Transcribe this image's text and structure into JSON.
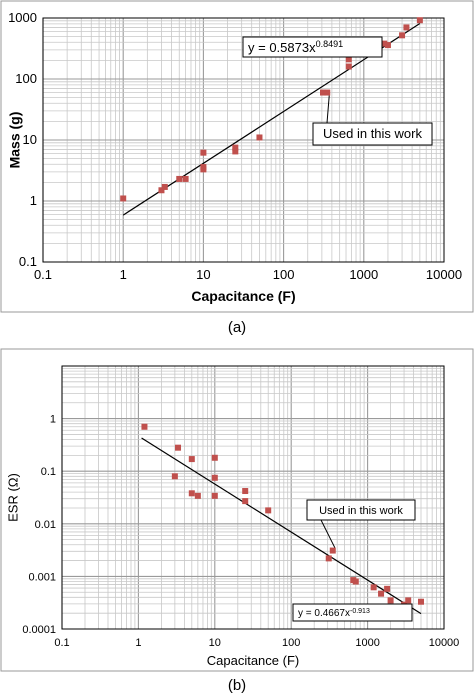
{
  "chart_data": [
    {
      "type": "scatter",
      "panel_label": "(a)",
      "xlabel": "Capacitance (F)",
      "ylabel": "Mass (g)",
      "xscale": "log",
      "yscale": "log",
      "xlim": [
        0.1,
        10000
      ],
      "ylim": [
        0.1,
        1000
      ],
      "x_ticks": [
        "0.1",
        "1",
        "10",
        "100",
        "1000",
        "10000"
      ],
      "y_ticks": [
        "0.1",
        "1",
        "10",
        "100",
        "1000"
      ],
      "grid": true,
      "marker_color": "#c0504d",
      "trendline": {
        "coef": 0.5873,
        "exponent": 0.8491,
        "x_range": [
          1,
          5000
        ],
        "equation_text": "y = 0.5873x",
        "equation_exponent": "0.8491"
      },
      "annotation": {
        "text": "Used in this work",
        "target": [
          350,
          60
        ]
      },
      "points": [
        {
          "x": 1,
          "y": 1.1
        },
        {
          "x": 3,
          "y": 1.5
        },
        {
          "x": 3.3,
          "y": 1.7
        },
        {
          "x": 5,
          "y": 2.3
        },
        {
          "x": 6,
          "y": 2.3
        },
        {
          "x": 10,
          "y": 3.3
        },
        {
          "x": 10,
          "y": 3.6
        },
        {
          "x": 10,
          "y": 6.2
        },
        {
          "x": 25,
          "y": 6.5
        },
        {
          "x": 25,
          "y": 7.5
        },
        {
          "x": 50,
          "y": 11
        },
        {
          "x": 310,
          "y": 60
        },
        {
          "x": 350,
          "y": 60
        },
        {
          "x": 650,
          "y": 160
        },
        {
          "x": 650,
          "y": 210
        },
        {
          "x": 1200,
          "y": 260
        },
        {
          "x": 1500,
          "y": 280
        },
        {
          "x": 1800,
          "y": 380
        },
        {
          "x": 2000,
          "y": 360
        },
        {
          "x": 3000,
          "y": 520
        },
        {
          "x": 3400,
          "y": 700
        },
        {
          "x": 5000,
          "y": 920
        }
      ]
    },
    {
      "type": "scatter",
      "panel_label": "(b)",
      "xlabel": "Capacitance (F)",
      "ylabel": "ESR (Ω)",
      "xscale": "log",
      "yscale": "log",
      "xlim": [
        0.1,
        10000
      ],
      "ylim": [
        0.0001,
        10
      ],
      "x_ticks": [
        "0.1",
        "1",
        "10",
        "100",
        "1000",
        "10000"
      ],
      "y_ticks": [
        "0.0001",
        "0.001",
        "0.01",
        "0.1",
        "1"
      ],
      "grid": true,
      "marker_color": "#c0504d",
      "trendline": {
        "coef": 0.4667,
        "exponent": -0.913,
        "x_range": [
          1.1,
          5000
        ],
        "equation_text": "y = 0.4667x",
        "equation_exponent": "-0.913"
      },
      "annotation": {
        "text": "Used in this work",
        "target": [
          350,
          0.0031
        ]
      },
      "points": [
        {
          "x": 1.2,
          "y": 0.7
        },
        {
          "x": 3,
          "y": 0.08
        },
        {
          "x": 3.3,
          "y": 0.28
        },
        {
          "x": 5,
          "y": 0.17
        },
        {
          "x": 5,
          "y": 0.038
        },
        {
          "x": 6,
          "y": 0.034
        },
        {
          "x": 10,
          "y": 0.18
        },
        {
          "x": 10,
          "y": 0.075
        },
        {
          "x": 10,
          "y": 0.034
        },
        {
          "x": 25,
          "y": 0.042
        },
        {
          "x": 25,
          "y": 0.027
        },
        {
          "x": 50,
          "y": 0.018
        },
        {
          "x": 310,
          "y": 0.0022
        },
        {
          "x": 350,
          "y": 0.0031
        },
        {
          "x": 650,
          "y": 0.00085
        },
        {
          "x": 700,
          "y": 0.0008
        },
        {
          "x": 1200,
          "y": 0.00062
        },
        {
          "x": 1500,
          "y": 0.00047
        },
        {
          "x": 1800,
          "y": 0.00058
        },
        {
          "x": 2000,
          "y": 0.00035
        },
        {
          "x": 3000,
          "y": 0.00029
        },
        {
          "x": 3400,
          "y": 0.00035
        },
        {
          "x": 5000,
          "y": 0.00033
        }
      ]
    }
  ]
}
